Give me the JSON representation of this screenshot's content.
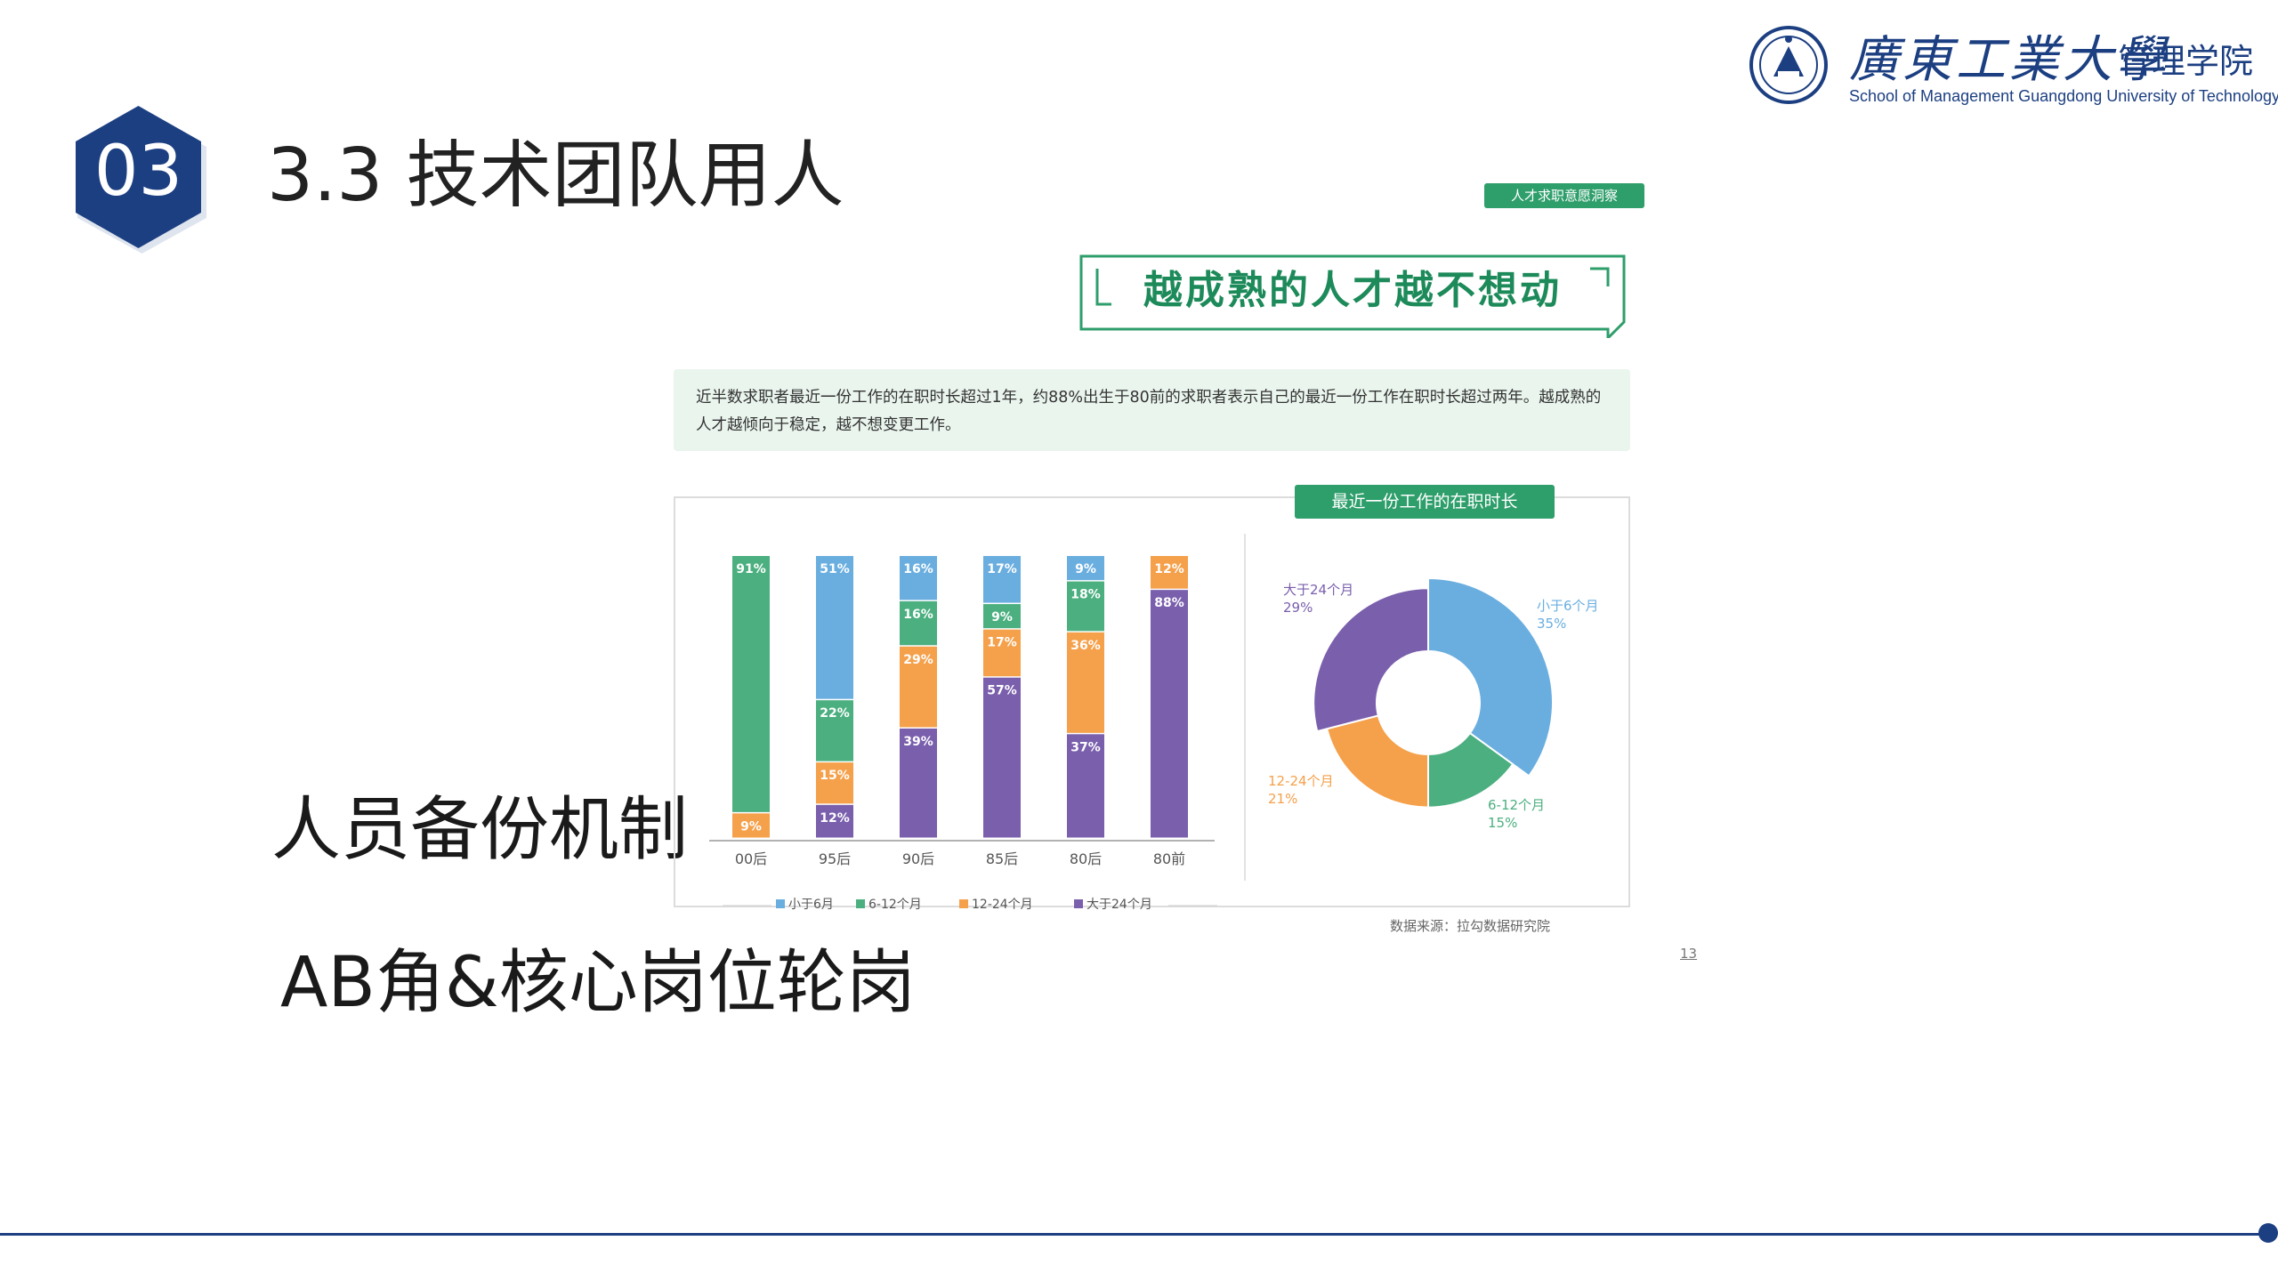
{
  "slide": {
    "section_number": "03",
    "title": "3.3 技术团队用人",
    "bullets": [
      "人员备份机制",
      "AB角&核心岗位轮岗"
    ],
    "page_number": "13"
  },
  "logo": {
    "name_cn": "廣東工業大學",
    "dept": "管理学院",
    "name_en": "School of Management Guangdong University of Technology"
  },
  "report": {
    "tag": "人才求职意愿洞察",
    "headline": "越成熟的人才越不想动",
    "summary": "近半数求职者最近一份工作的在职时长超过1年，约88%出生于80前的求职者表示自己的最近一份工作在职时长超过两年。越成熟的人才越倾向于稳定，越不想变更工作。",
    "ring_title": "最近一份工作的在职时长",
    "source": "数据来源：拉勾数据研究院"
  },
  "colors": {
    "brand_navy": "#1c3f82",
    "green": "#4caf80",
    "blue": "#6aaee0",
    "orange": "#f5a04a",
    "purple": "#7a5fad"
  },
  "chart_data": [
    {
      "type": "bar",
      "stacked": true,
      "categories": [
        "00后",
        "95后",
        "90后",
        "85后",
        "80后",
        "80前"
      ],
      "series": [
        {
          "name": "小于6月",
          "color": "#6aaee0",
          "values": [
            0,
            51,
            16,
            17,
            9,
            0
          ]
        },
        {
          "name": "6-12个月",
          "color": "#4caf80",
          "values": [
            91,
            22,
            16,
            9,
            18,
            0
          ]
        },
        {
          "name": "12-24个月",
          "color": "#f5a04a",
          "values": [
            9,
            15,
            29,
            17,
            36,
            12
          ]
        },
        {
          "name": "大于24个月",
          "color": "#7a5fad",
          "values": [
            0,
            12,
            39,
            57,
            37,
            88
          ]
        }
      ],
      "value_suffix": "%",
      "ylim": [
        0,
        100
      ],
      "legend_position": "bottom"
    },
    {
      "type": "pie",
      "donut": true,
      "title": "最近一份工作的在职时长",
      "slices": [
        {
          "label": "小于6个月",
          "value": 35,
          "color": "#6aaee0"
        },
        {
          "label": "6-12个月",
          "value": 15,
          "color": "#4caf80"
        },
        {
          "label": "12-24个月",
          "value": 21,
          "color": "#f5a04a"
        },
        {
          "label": "大于24个月",
          "value": 29,
          "color": "#7a5fad"
        }
      ],
      "value_suffix": "%"
    }
  ]
}
